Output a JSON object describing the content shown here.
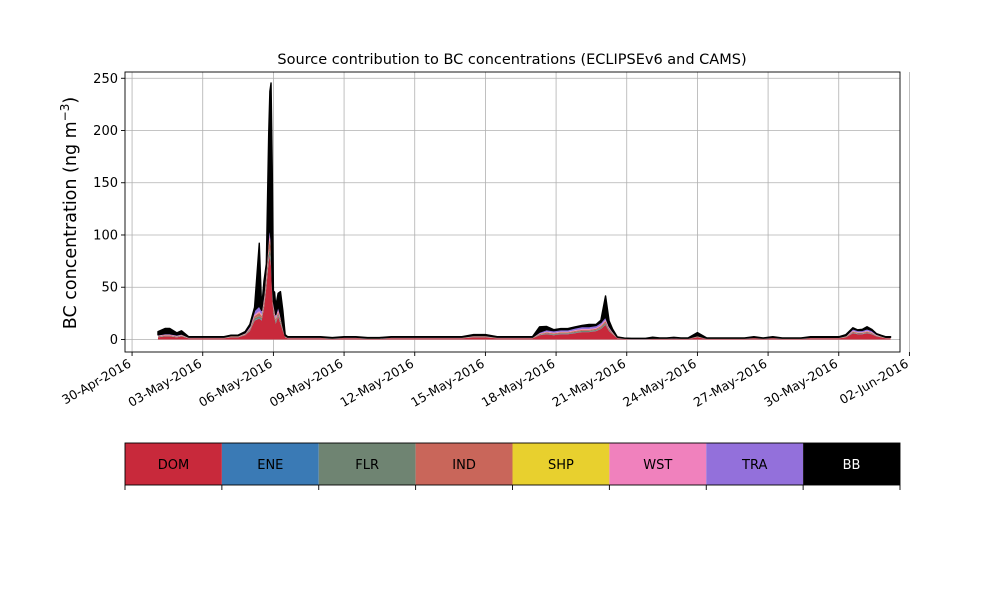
{
  "chart_data": {
    "type": "area",
    "stacked": true,
    "title": "Source contribution to BC concentrations (ECLIPSEv6 and CAMS)",
    "ylabel_main": "BC concentration (ng m",
    "ylabel_exp": "−3",
    "ylabel_close": ")",
    "xlabel": "",
    "ylim": [
      -12,
      256
    ],
    "xlim_days": [
      -0.3,
      32.6
    ],
    "grid": true,
    "yticks": [
      0,
      50,
      100,
      150,
      200,
      250
    ],
    "xticks": [
      {
        "day": 0,
        "label": "30-Apr-2016"
      },
      {
        "day": 3,
        "label": "03-May-2016"
      },
      {
        "day": 6,
        "label": "06-May-2016"
      },
      {
        "day": 9,
        "label": "09-May-2016"
      },
      {
        "day": 12,
        "label": "12-May-2016"
      },
      {
        "day": 15,
        "label": "15-May-2016"
      },
      {
        "day": 18,
        "label": "18-May-2016"
      },
      {
        "day": 21,
        "label": "21-May-2016"
      },
      {
        "day": 24,
        "label": "24-May-2016"
      },
      {
        "day": 27,
        "label": "27-May-2016"
      },
      {
        "day": 30,
        "label": "30-May-2016"
      },
      {
        "day": 33,
        "label": "02-Jun-2016"
      }
    ],
    "colors": {
      "DOM": "#c8293b",
      "ENE": "#3a7ab5",
      "FLR": "#6f8472",
      "IND": "#c9665a",
      "SHP": "#e8d02e",
      "WST": "#f081bd",
      "TRA": "#9370db",
      "BB": "#000000"
    },
    "legend": {
      "placement": "below",
      "entries": [
        "DOM",
        "ENE",
        "FLR",
        "IND",
        "SHP",
        "WST",
        "TRA",
        "BB"
      ]
    },
    "x_dates": [
      "2016-05-01",
      "2016-05-02",
      "2016-05-03",
      "2016-05-04",
      "2016-05-05",
      "2016-05-06",
      "2016-05-07",
      "2016-05-08",
      "2016-05-09",
      "2016-05-10",
      "2016-05-11",
      "2016-05-12",
      "2016-05-13",
      "2016-05-14",
      "2016-05-15",
      "2016-05-16",
      "2016-05-17",
      "2016-05-18",
      "2016-05-19",
      "2016-05-20",
      "2016-05-21",
      "2016-05-22",
      "2016-05-23",
      "2016-05-24",
      "2016-05-25",
      "2016-05-26",
      "2016-05-27",
      "2016-05-28",
      "2016-05-29",
      "2016-05-30",
      "2016-05-31",
      "2016-06-01"
    ],
    "x": [
      1.1,
      1.4,
      1.6,
      1.9,
      2.1,
      2.4,
      2.7,
      3,
      3.3,
      3.6,
      3.9,
      4.2,
      4.5,
      4.8,
      5,
      5.2,
      5.4,
      5.5,
      5.6,
      5.7,
      5.8,
      5.85,
      5.9,
      5.95,
      6,
      6.05,
      6.1,
      6.2,
      6.3,
      6.4,
      6.5,
      6.6,
      6.8,
      7,
      7.3,
      7.6,
      8,
      8.5,
      9,
      9.5,
      10,
      10.5,
      11,
      11.5,
      12,
      12.5,
      13,
      13.5,
      14,
      14.5,
      15,
      15.5,
      16,
      16.5,
      17,
      17.3,
      17.6,
      17.9,
      18.2,
      18.5,
      18.8,
      19.1,
      19.4,
      19.7,
      19.9,
      20.1,
      20.25,
      20.4,
      20.6,
      20.9,
      21.2,
      21.5,
      21.8,
      22.1,
      22.4,
      22.7,
      23,
      23.3,
      23.6,
      24,
      24.4,
      24.8,
      25.2,
      25.6,
      26,
      26.4,
      26.8,
      27.2,
      27.6,
      28,
      28.4,
      28.8,
      29.2,
      29.6,
      30,
      30.3,
      30.6,
      30.8,
      31,
      31.2,
      31.4,
      31.6,
      31.8,
      32,
      32.2
    ],
    "series": [
      {
        "name": "DOM",
        "values": [
          2,
          3,
          3,
          2,
          3,
          1,
          1,
          1,
          1,
          1,
          1,
          2,
          2,
          4,
          8,
          18,
          20,
          18,
          30,
          50,
          75,
          80,
          70,
          40,
          25,
          20,
          15,
          22,
          15,
          8,
          2,
          1,
          1,
          1,
          1,
          1,
          1,
          0.5,
          1,
          1,
          0.5,
          0.5,
          1,
          1,
          1,
          1,
          1,
          1,
          1,
          2,
          2,
          1,
          1,
          1,
          1,
          4,
          5,
          4,
          5,
          5,
          6,
          7,
          7,
          8,
          10,
          14,
          8,
          5,
          1,
          0.5,
          0.3,
          0.3,
          0.3,
          0.5,
          0.5,
          0.5,
          0.8,
          0.5,
          0.5,
          2,
          0.5,
          0.5,
          0.5,
          0.5,
          0.5,
          1,
          0.5,
          1,
          0.5,
          0.5,
          0.5,
          1,
          1,
          1,
          1,
          2,
          6,
          5,
          5,
          6,
          5,
          3,
          2,
          1,
          1
        ]
      },
      {
        "name": "ENE",
        "values": [
          0.1,
          0.1,
          0.1,
          0.1,
          0.1,
          0.1,
          0.1,
          0.1,
          0.1,
          0.1,
          0.1,
          0.1,
          0.1,
          0.1,
          0.2,
          0.4,
          0.5,
          0.5,
          0.6,
          0.8,
          1,
          1,
          1,
          0.7,
          0.5,
          0.5,
          0.4,
          0.5,
          0.4,
          0.2,
          0.1,
          0.1,
          0.1,
          0.1,
          0.1,
          0.1,
          0.1,
          0.1,
          0.1,
          0.1,
          0.1,
          0.1,
          0.1,
          0.1,
          0.1,
          0.1,
          0.1,
          0.1,
          0.1,
          0.1,
          0.1,
          0.1,
          0.1,
          0.1,
          0.1,
          0.1,
          0.2,
          0.2,
          0.2,
          0.2,
          0.2,
          0.2,
          0.2,
          0.2,
          0.3,
          0.3,
          0.2,
          0.1,
          0.1,
          0.1,
          0.1,
          0.1,
          0.1,
          0.1,
          0.1,
          0.1,
          0.1,
          0.1,
          0.1,
          0.1,
          0.1,
          0.1,
          0.1,
          0.1,
          0.1,
          0.1,
          0.1,
          0.1,
          0.1,
          0.1,
          0.1,
          0.1,
          0.1,
          0.1,
          0.1,
          0.1,
          0.2,
          0.2,
          0.2,
          0.2,
          0.2,
          0.1,
          0.1,
          0.1,
          0.1
        ]
      },
      {
        "name": "FLR",
        "values": [
          0.5,
          0.5,
          0.5,
          0.4,
          0.4,
          0.2,
          0.2,
          0.2,
          0.2,
          0.2,
          0.2,
          0.3,
          0.3,
          0.5,
          1,
          2,
          2,
          2,
          3,
          4,
          6,
          6,
          6,
          3,
          2,
          2,
          2,
          2,
          2,
          1,
          0.3,
          0.2,
          0.2,
          0.2,
          0.2,
          0.2,
          0.2,
          0.1,
          0.2,
          0.2,
          0.1,
          0.1,
          0.2,
          0.2,
          0.2,
          0.2,
          0.2,
          0.2,
          0.2,
          0.3,
          0.3,
          0.2,
          0.2,
          0.2,
          0.2,
          0.5,
          0.8,
          0.8,
          0.8,
          0.8,
          0.9,
          1,
          1,
          1,
          1.2,
          1.5,
          1,
          0.5,
          0.2,
          0.1,
          0.1,
          0.1,
          0.1,
          0.1,
          0.1,
          0.1,
          0.1,
          0.1,
          0.1,
          0.3,
          0.1,
          0.1,
          0.1,
          0.1,
          0.1,
          0.2,
          0.1,
          0.2,
          0.1,
          0.1,
          0.1,
          0.2,
          0.2,
          0.2,
          0.2,
          0.3,
          0.6,
          0.5,
          0.5,
          0.6,
          0.5,
          0.3,
          0.2,
          0.2,
          0.2
        ]
      },
      {
        "name": "IND",
        "values": [
          0.5,
          0.5,
          0.5,
          0.4,
          0.4,
          0.2,
          0.2,
          0.2,
          0.2,
          0.2,
          0.2,
          0.3,
          0.3,
          0.5,
          1,
          2,
          3,
          2,
          3,
          5,
          7,
          8,
          7,
          4,
          3,
          2,
          2,
          2,
          2,
          1,
          0.3,
          0.2,
          0.2,
          0.2,
          0.2,
          0.2,
          0.2,
          0.1,
          0.2,
          0.2,
          0.1,
          0.1,
          0.2,
          0.2,
          0.2,
          0.2,
          0.2,
          0.2,
          0.2,
          0.3,
          0.3,
          0.2,
          0.2,
          0.2,
          0.2,
          0.6,
          0.8,
          0.8,
          0.8,
          0.8,
          1,
          1,
          1,
          1,
          1.3,
          1.7,
          1,
          0.6,
          0.2,
          0.1,
          0.1,
          0.1,
          0.1,
          0.1,
          0.1,
          0.1,
          0.1,
          0.1,
          0.1,
          0.3,
          0.1,
          0.1,
          0.1,
          0.1,
          0.1,
          0.2,
          0.1,
          0.2,
          0.1,
          0.1,
          0.1,
          0.2,
          0.2,
          0.2,
          0.2,
          0.3,
          0.8,
          0.7,
          0.7,
          0.8,
          0.7,
          0.4,
          0.3,
          0.2,
          0.2
        ]
      },
      {
        "name": "SHP",
        "values": [
          0.1,
          0.1,
          0.1,
          0.1,
          0.1,
          0.1,
          0.1,
          0.1,
          0.1,
          0.1,
          0.1,
          0.1,
          0.1,
          0.1,
          0.1,
          0.2,
          0.2,
          0.2,
          0.3,
          0.4,
          0.5,
          0.5,
          0.5,
          0.3,
          0.2,
          0.2,
          0.2,
          0.2,
          0.2,
          0.1,
          0.1,
          0.1,
          0.1,
          0.1,
          0.1,
          0.1,
          0.1,
          0.1,
          0.1,
          0.1,
          0.1,
          0.1,
          0.1,
          0.1,
          0.1,
          0.1,
          0.1,
          0.1,
          0.1,
          0.1,
          0.1,
          0.1,
          0.1,
          0.1,
          0.1,
          0.1,
          0.1,
          0.1,
          0.1,
          0.1,
          0.1,
          0.1,
          0.1,
          0.1,
          0.1,
          0.2,
          0.1,
          0.1,
          0.1,
          0.1,
          0.1,
          0.1,
          0.1,
          0.1,
          0.1,
          0.1,
          0.1,
          0.1,
          0.1,
          0.1,
          0.1,
          0.1,
          0.1,
          0.1,
          0.1,
          0.1,
          0.1,
          0.1,
          0.1,
          0.1,
          0.1,
          0.1,
          0.1,
          0.1,
          0.1,
          0.1,
          0.1,
          0.1,
          0.1,
          0.1,
          0.1,
          0.1,
          0.1,
          0.1,
          0.1
        ]
      },
      {
        "name": "WST",
        "values": [
          0.3,
          0.3,
          0.3,
          0.3,
          0.3,
          0.1,
          0.1,
          0.1,
          0.1,
          0.1,
          0.1,
          0.2,
          0.2,
          0.3,
          0.6,
          1.2,
          1.4,
          1.2,
          2,
          3,
          4,
          4,
          4,
          2.5,
          1.8,
          1.5,
          1.2,
          1.5,
          1.2,
          0.6,
          0.2,
          0.1,
          0.1,
          0.1,
          0.1,
          0.1,
          0.1,
          0.1,
          0.1,
          0.1,
          0.1,
          0.1,
          0.1,
          0.1,
          0.1,
          0.1,
          0.1,
          0.1,
          0.1,
          0.2,
          0.2,
          0.1,
          0.1,
          0.1,
          0.1,
          0.3,
          0.5,
          0.5,
          0.5,
          0.5,
          0.6,
          0.7,
          0.7,
          0.7,
          0.8,
          1,
          0.6,
          0.4,
          0.1,
          0.1,
          0.1,
          0.1,
          0.1,
          0.1,
          0.1,
          0.1,
          0.1,
          0.1,
          0.1,
          0.2,
          0.1,
          0.1,
          0.1,
          0.1,
          0.1,
          0.1,
          0.1,
          0.1,
          0.1,
          0.1,
          0.1,
          0.1,
          0.1,
          0.1,
          0.1,
          0.2,
          0.5,
          0.4,
          0.4,
          0.5,
          0.4,
          0.2,
          0.2,
          0.1,
          0.1
        ]
      },
      {
        "name": "TRA",
        "values": [
          1,
          1,
          1,
          1,
          1,
          0.5,
          0.5,
          0.5,
          0.5,
          0.5,
          0.5,
          0.6,
          0.6,
          1,
          2,
          4,
          5,
          4,
          5,
          7,
          8,
          8,
          7,
          5,
          4,
          4,
          3,
          4,
          3,
          2,
          0.6,
          0.5,
          0.5,
          0.5,
          0.5,
          0.5,
          0.5,
          0.3,
          0.5,
          0.5,
          0.3,
          0.3,
          0.5,
          0.5,
          0.5,
          0.5,
          0.5,
          0.5,
          0.5,
          0.7,
          0.7,
          0.5,
          0.5,
          0.5,
          0.5,
          1.5,
          2,
          2,
          2,
          2,
          2.2,
          2.4,
          2.4,
          2.4,
          2.6,
          3,
          2,
          1.2,
          0.5,
          0.2,
          0.2,
          0.2,
          0.2,
          0.2,
          0.2,
          0.2,
          0.3,
          0.2,
          0.2,
          0.6,
          0.2,
          0.2,
          0.2,
          0.2,
          0.2,
          0.4,
          0.2,
          0.4,
          0.2,
          0.2,
          0.2,
          0.4,
          0.4,
          0.4,
          0.4,
          0.6,
          2,
          1.8,
          1.8,
          2,
          1.8,
          1,
          0.6,
          0.4,
          0.4
        ]
      },
      {
        "name": "BB",
        "values": [
          3,
          5,
          5,
          2,
          3,
          0.5,
          0.5,
          0.5,
          0.5,
          0.5,
          0.5,
          0.5,
          0.5,
          1,
          1.5,
          3,
          60,
          2,
          12,
          2,
          95,
          130,
          150,
          110,
          10,
          15,
          8,
          12,
          22,
          15,
          1,
          0.5,
          0.5,
          0.5,
          0.5,
          0.5,
          0.5,
          0.5,
          0.5,
          0.5,
          0.5,
          0.5,
          0.5,
          0.5,
          0.5,
          0.5,
          0.5,
          0.5,
          0.5,
          1,
          1,
          0.5,
          0.5,
          0.5,
          0.5,
          5,
          3,
          1,
          1,
          1,
          1,
          1,
          2,
          1,
          2,
          20,
          5,
          2,
          0.2,
          0.1,
          0.1,
          0.1,
          0.1,
          1,
          0.2,
          0.2,
          0.5,
          0.3,
          0.2,
          3,
          0.2,
          0.2,
          0.2,
          0.2,
          0.2,
          0.5,
          0.2,
          0.5,
          0.2,
          0.2,
          0.2,
          0.5,
          0.5,
          0.5,
          0.5,
          1,
          1,
          0.5,
          1,
          2,
          1,
          0.5,
          0.5,
          0.5,
          0.5
        ]
      }
    ]
  }
}
